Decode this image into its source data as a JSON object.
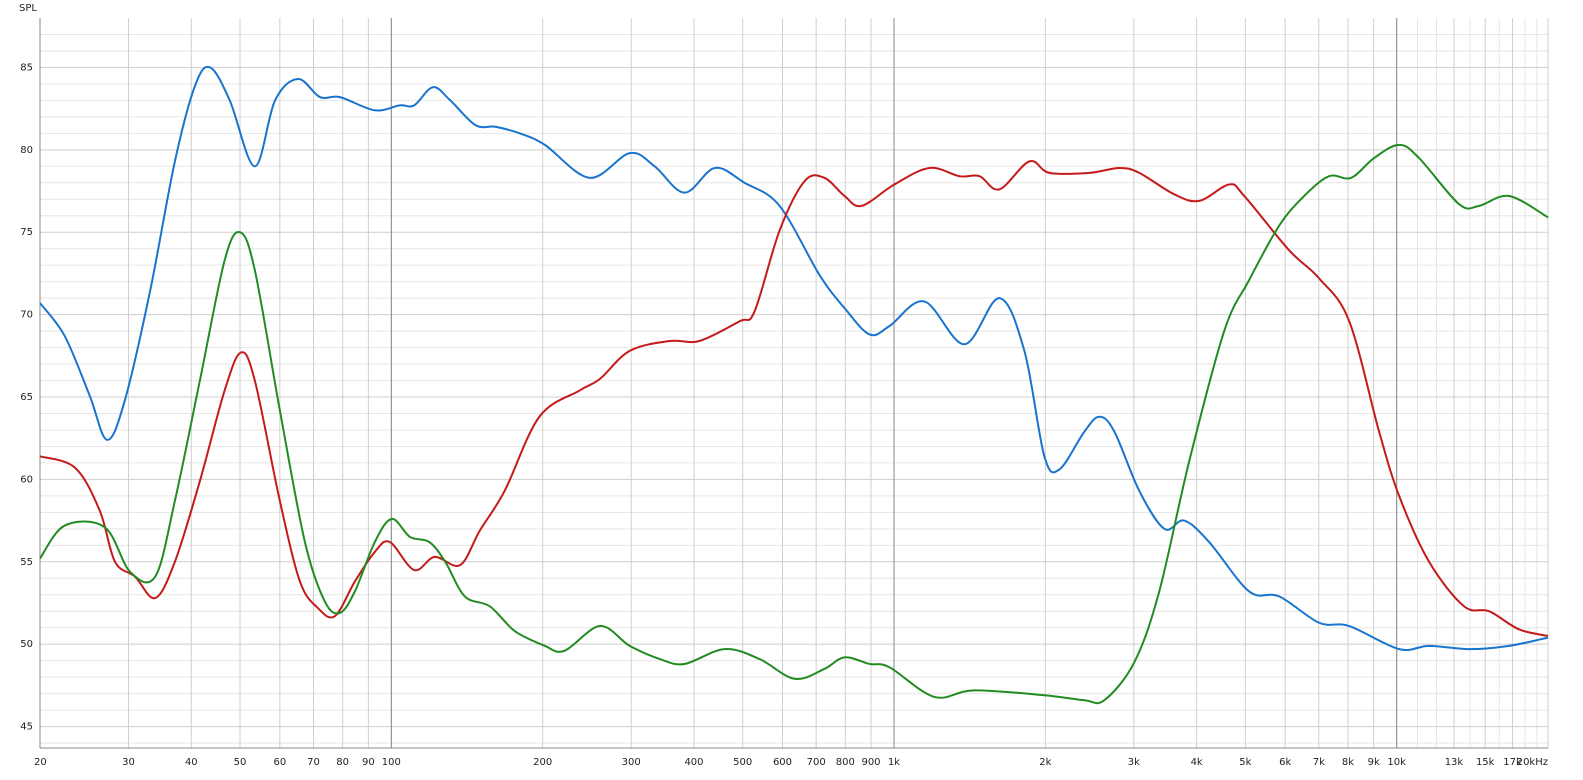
{
  "chart_data": {
    "type": "line",
    "y_label": "SPL",
    "log_x": true,
    "grid": true,
    "xlim": [
      20,
      20000
    ],
    "ylim": [
      43.7,
      88
    ],
    "yticks": [
      45,
      50,
      55,
      60,
      65,
      70,
      75,
      80,
      85
    ],
    "yminorticks": [
      44,
      46,
      47,
      48,
      49,
      51,
      52,
      53,
      54,
      56,
      57,
      58,
      59,
      61,
      62,
      63,
      64,
      66,
      67,
      68,
      69,
      71,
      72,
      73,
      74,
      76,
      77,
      78,
      79,
      81,
      82,
      83,
      84,
      86,
      87
    ],
    "xticks": [
      20,
      30,
      40,
      50,
      60,
      70,
      80,
      90,
      100,
      200,
      300,
      400,
      500,
      600,
      700,
      800,
      900,
      {
        "value": 1000,
        "label": "1k"
      },
      {
        "value": 2000,
        "label": "2k"
      },
      {
        "value": 3000,
        "label": "3k"
      },
      {
        "value": 4000,
        "label": "4k"
      },
      {
        "value": 5000,
        "label": "5k"
      },
      {
        "value": 6000,
        "label": "6k"
      },
      {
        "value": 7000,
        "label": "7k"
      },
      {
        "value": 8000,
        "label": "8k"
      },
      {
        "value": 9000,
        "label": "9k"
      },
      {
        "value": 10000,
        "label": "10k"
      },
      {
        "value": 13000,
        "label": "13k"
      },
      {
        "value": 15000,
        "label": "15k"
      },
      {
        "value": 17000,
        "label": "17k"
      },
      {
        "value": 20000,
        "label": "20kHz"
      }
    ],
    "xminorticks": [
      11000,
      12000,
      14000,
      16000,
      18000,
      19000
    ],
    "xmajorlines": [
      100,
      1000,
      10000
    ],
    "series": [
      {
        "color": "#1874cd",
        "x": [
          20,
          22.4,
          25.1,
          27.2,
          29.5,
          33.1,
          37.1,
          40.7,
          43.6,
          47.7,
          53.5,
          58.7,
          65.2,
          72.1,
          79,
          92.7,
          103.9,
          111,
          121,
          131,
          147,
          161,
          180,
          202,
          248,
          298,
          334,
          383,
          440,
          504,
          592,
          711,
          797,
          894,
          979,
          1149,
          1380,
          1620,
          1817,
          1991,
          2132,
          2392,
          2562,
          2744,
          3076,
          3450,
          3778,
          4236,
          5088,
          5838,
          7010,
          8046,
          10112,
          11600,
          13932,
          16736,
          20000
        ],
        "values": [
          70.7,
          68.7,
          65.1,
          62.4,
          64.8,
          71.4,
          79.3,
          83.9,
          85.0,
          83.0,
          79.0,
          83.0,
          84.3,
          83.2,
          83.2,
          82.4,
          82.7,
          82.7,
          83.8,
          83.0,
          81.5,
          81.4,
          81.0,
          80.3,
          78.3,
          79.8,
          79.0,
          77.4,
          78.9,
          78.0,
          76.6,
          72.4,
          70.4,
          68.8,
          69.3,
          70.8,
          68.2,
          71.0,
          67.8,
          61.4,
          60.6,
          62.9,
          63.8,
          62.9,
          59.3,
          57.0,
          57.5,
          56.2,
          53.2,
          52.9,
          51.3,
          51.1,
          49.7,
          49.9,
          49.7,
          49.9,
          50.4
        ]
      },
      {
        "color": "#c41a1a",
        "x": [
          20,
          23.5,
          26.3,
          28.2,
          30.9,
          33.9,
          37.1,
          41.6,
          46.6,
          50.2,
          53.5,
          60,
          65.8,
          71.4,
          77.2,
          84.6,
          92.7,
          99.3,
          111,
          122,
          137,
          150,
          168,
          197,
          237,
          260,
          298,
          358,
          410,
          493,
          528,
          592,
          664,
          727,
          797,
          862,
          1002,
          1176,
          1349,
          1479,
          1620,
          1859,
          2038,
          2448,
          2808,
          3076,
          3610,
          4048,
          4644,
          4974,
          6112,
          7010,
          8046,
          9226,
          10112,
          11600,
          13616,
          15268,
          17512,
          20000
        ],
        "values": [
          61.4,
          60.7,
          58.1,
          55.0,
          54.1,
          52.8,
          55.0,
          59.9,
          65.4,
          67.7,
          66.0,
          58.7,
          53.8,
          52.2,
          51.7,
          53.8,
          55.6,
          56.2,
          54.5,
          55.3,
          54.8,
          56.9,
          59.3,
          63.8,
          65.4,
          66.1,
          67.8,
          68.4,
          68.4,
          69.6,
          70.2,
          75.1,
          78.1,
          78.3,
          77.2,
          76.6,
          77.9,
          78.9,
          78.4,
          78.4,
          77.6,
          79.3,
          78.6,
          78.6,
          78.9,
          78.6,
          77.3,
          76.9,
          77.9,
          77.2,
          73.9,
          72.2,
          69.6,
          62.9,
          59.0,
          55.0,
          52.3,
          52.0,
          50.9,
          50.5
        ]
      },
      {
        "color": "#228b22",
        "x": [
          20,
          22.4,
          26.9,
          30.2,
          33.9,
          37.1,
          41.6,
          46.6,
          50,
          53.5,
          60,
          67.3,
          73.7,
          79,
          84.6,
          92.7,
          100.2,
          109,
          119,
          128,
          140,
          157,
          176,
          202,
          221,
          260,
          298,
          342,
          383,
          460,
          540,
          634,
          727,
          797,
          894,
          979,
          1203,
          1445,
          1991,
          2392,
          2620,
          3006,
          3370,
          3866,
          4538,
          5088,
          5838,
          6546,
          7338,
          8118,
          9016,
          10112,
          11080,
          13312,
          14590,
          16736,
          20000
        ],
        "values": [
          55.2,
          57.2,
          57.1,
          54.4,
          54.1,
          58.7,
          66.0,
          73.3,
          75.0,
          72.7,
          64.2,
          56.2,
          52.6,
          51.9,
          53.2,
          56.2,
          57.6,
          56.5,
          56.2,
          55.0,
          52.9,
          52.3,
          50.8,
          49.9,
          49.6,
          51.1,
          49.9,
          49.1,
          48.8,
          49.7,
          49.1,
          47.9,
          48.5,
          49.2,
          48.8,
          48.6,
          46.8,
          47.2,
          46.9,
          46.6,
          46.6,
          48.9,
          53.2,
          61.1,
          69.0,
          72.1,
          75.4,
          77.2,
          78.4,
          78.3,
          79.5,
          80.3,
          79.5,
          76.7,
          76.6,
          77.2,
          75.9
        ]
      }
    ]
  }
}
